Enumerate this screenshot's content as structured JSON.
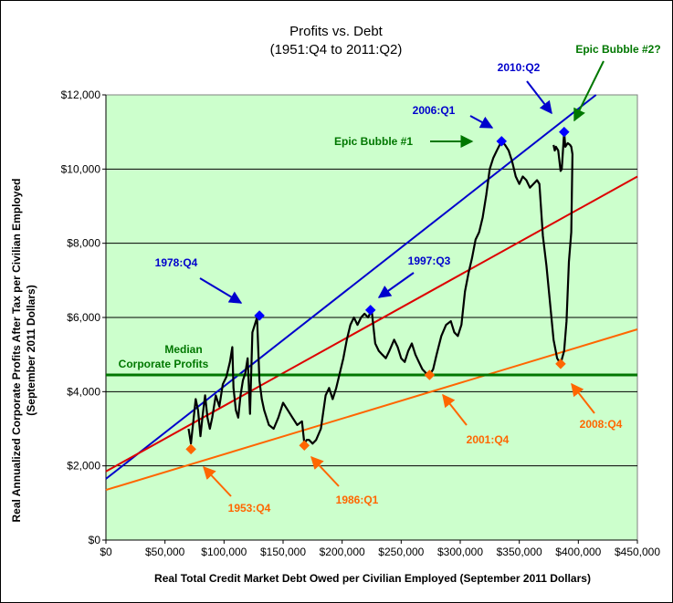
{
  "chart_data": {
    "type": "scatter",
    "title": "Profits vs. Debt",
    "subtitle": "(1951:Q4 to 2011:Q2)",
    "xlabel": "Real Total Credit Market Debt Owed per Civilian Employed (September 2011 Dollars)",
    "ylabel": "Real Annualized Corporate Profits After Tax per Civilian Employed",
    "ylabel2": "(September 2011 Dollars)",
    "xlim": [
      0,
      450000
    ],
    "ylim": [
      0,
      12000
    ],
    "xticks": [
      "$0",
      "$50,000",
      "$100,000",
      "$150,000",
      "$200,000",
      "$250,000",
      "$300,000",
      "$350,000",
      "$400,000",
      "$450,000"
    ],
    "yticks": [
      "$0",
      "$2,000",
      "$4,000",
      "$6,000",
      "$8,000",
      "$10,000",
      "$12,000"
    ],
    "grid": true,
    "plot_background": "#ccffcc",
    "series": [
      {
        "role": "profits-path",
        "color": "#000000",
        "points": [
          [
            70000,
            3000
          ],
          [
            72000,
            2600
          ],
          [
            74000,
            3200
          ],
          [
            76000,
            3800
          ],
          [
            78000,
            3500
          ],
          [
            80000,
            2800
          ],
          [
            82000,
            3400
          ],
          [
            84000,
            3900
          ],
          [
            86000,
            3300
          ],
          [
            88000,
            3000
          ],
          [
            90000,
            3300
          ],
          [
            93000,
            3900
          ],
          [
            96000,
            3600
          ],
          [
            99000,
            4200
          ],
          [
            102000,
            4400
          ],
          [
            105000,
            4800
          ],
          [
            107000,
            5200
          ],
          [
            108000,
            4100
          ],
          [
            110000,
            3500
          ],
          [
            112000,
            3300
          ],
          [
            114000,
            3900
          ],
          [
            116000,
            4300
          ],
          [
            118000,
            4500
          ],
          [
            120000,
            4900
          ],
          [
            122000,
            3400
          ],
          [
            124000,
            5600
          ],
          [
            126000,
            5800
          ],
          [
            128000,
            6000
          ],
          [
            130000,
            4300
          ],
          [
            132000,
            3800
          ],
          [
            134000,
            3500
          ],
          [
            138000,
            3100
          ],
          [
            142000,
            3000
          ],
          [
            146000,
            3300
          ],
          [
            150000,
            3700
          ],
          [
            154000,
            3500
          ],
          [
            158000,
            3300
          ],
          [
            162000,
            3100
          ],
          [
            166000,
            3200
          ],
          [
            168000,
            2600
          ],
          [
            170000,
            2700
          ],
          [
            172000,
            2700
          ],
          [
            175000,
            2600
          ],
          [
            178000,
            2700
          ],
          [
            182000,
            3000
          ],
          [
            186000,
            3900
          ],
          [
            189000,
            4100
          ],
          [
            192000,
            3800
          ],
          [
            195000,
            4100
          ],
          [
            198000,
            4500
          ],
          [
            201000,
            4900
          ],
          [
            204000,
            5400
          ],
          [
            207000,
            5800
          ],
          [
            210000,
            6000
          ],
          [
            213000,
            5800
          ],
          [
            216000,
            6000
          ],
          [
            219000,
            6100
          ],
          [
            222000,
            6000
          ],
          [
            225000,
            6200
          ],
          [
            228000,
            5300
          ],
          [
            231000,
            5100
          ],
          [
            234000,
            5000
          ],
          [
            237000,
            4900
          ],
          [
            240000,
            5100
          ],
          [
            244000,
            5400
          ],
          [
            247000,
            5200
          ],
          [
            250000,
            4900
          ],
          [
            253000,
            4800
          ],
          [
            256000,
            5100
          ],
          [
            259000,
            5300
          ],
          [
            262000,
            5000
          ],
          [
            265000,
            4800
          ],
          [
            268000,
            4600
          ],
          [
            271000,
            4500
          ],
          [
            274000,
            4450
          ],
          [
            277000,
            4600
          ],
          [
            280000,
            5000
          ],
          [
            284000,
            5500
          ],
          [
            288000,
            5800
          ],
          [
            292000,
            5900
          ],
          [
            295000,
            5600
          ],
          [
            298000,
            5500
          ],
          [
            301000,
            5800
          ],
          [
            304000,
            6700
          ],
          [
            307000,
            7200
          ],
          [
            310000,
            7600
          ],
          [
            313000,
            8100
          ],
          [
            316000,
            8300
          ],
          [
            319000,
            8700
          ],
          [
            322000,
            9300
          ],
          [
            325000,
            10000
          ],
          [
            328000,
            10300
          ],
          [
            331000,
            10500
          ],
          [
            335000,
            10750
          ],
          [
            338000,
            10650
          ],
          [
            341000,
            10500
          ],
          [
            344000,
            10200
          ],
          [
            347000,
            9800
          ],
          [
            350000,
            9600
          ],
          [
            353000,
            9800
          ],
          [
            356000,
            9700
          ],
          [
            359000,
            9500
          ],
          [
            362000,
            9600
          ],
          [
            365000,
            9700
          ],
          [
            367000,
            9600
          ],
          [
            370000,
            8200
          ],
          [
            373000,
            7400
          ],
          [
            376000,
            6400
          ],
          [
            379000,
            5400
          ],
          [
            382000,
            4900
          ],
          [
            385000,
            4750
          ],
          [
            388000,
            5100
          ],
          [
            390000,
            5900
          ],
          [
            392000,
            7500
          ],
          [
            394000,
            8300
          ],
          [
            395000,
            10400
          ],
          [
            394000,
            10600
          ],
          [
            393000,
            10650
          ],
          [
            391000,
            10700
          ],
          [
            389000,
            10600
          ],
          [
            388000,
            11000
          ],
          [
            387000,
            10500
          ],
          [
            386000,
            10000
          ],
          [
            385000,
            9950
          ],
          [
            383000,
            10500
          ],
          [
            381000,
            10600
          ],
          [
            380000,
            10500
          ],
          [
            379000,
            10650
          ]
        ]
      }
    ],
    "trendlines": [
      {
        "role": "upper-trend",
        "color": "#0000cc",
        "x1": 0,
        "y1": 1650,
        "x2": 415000,
        "y2": 12000
      },
      {
        "role": "middle-trend",
        "color": "#dd0000",
        "x1": 0,
        "y1": 1850,
        "x2": 450000,
        "y2": 9800
      },
      {
        "role": "lower-trend",
        "color": "#ff6600",
        "x1": 0,
        "y1": 1350,
        "x2": 450000,
        "y2": 5680
      },
      {
        "role": "median-line",
        "color": "#007700",
        "x1": 0,
        "y1": 4450,
        "x2": 450000,
        "y2": 4450
      }
    ],
    "markers": [
      {
        "label": "1953:Q4",
        "x": 72000,
        "y": 2450,
        "color": "#ff6600"
      },
      {
        "label": "1986:Q1",
        "x": 168000,
        "y": 2550,
        "color": "#ff6600"
      },
      {
        "label": "2001:Q4",
        "x": 274000,
        "y": 4450,
        "color": "#ff6600"
      },
      {
        "label": "2008:Q4",
        "x": 385000,
        "y": 4750,
        "color": "#ff6600"
      },
      {
        "label": "1978:Q4",
        "x": 130000,
        "y": 6050,
        "color": "#0000ff"
      },
      {
        "label": "1997:Q3",
        "x": 224000,
        "y": 6200,
        "color": "#0000ff"
      },
      {
        "label": "2006:Q1",
        "x": 335000,
        "y": 10750,
        "color": "#0000ff"
      },
      {
        "label": "2010:Q2",
        "x": 388000,
        "y": 11000,
        "color": "#0000ff"
      }
    ],
    "annotations": {
      "median_label_line1": "Median",
      "median_label_line2": "Corporate Profits",
      "epic_bubble_1": "Epic Bubble #1",
      "epic_bubble_2": "Epic Bubble #2?",
      "label_1978": "1978:Q4",
      "label_1997": "1997:Q3",
      "label_2006": "2006:Q1",
      "label_2010": "2010:Q2",
      "label_1953": "1953:Q4",
      "label_1986": "1986:Q1",
      "label_2001": "2001:Q4",
      "label_2008": "2008:Q4",
      "blue_color": "#0000cc",
      "orange_color": "#ff6600",
      "green_color": "#007700"
    }
  }
}
